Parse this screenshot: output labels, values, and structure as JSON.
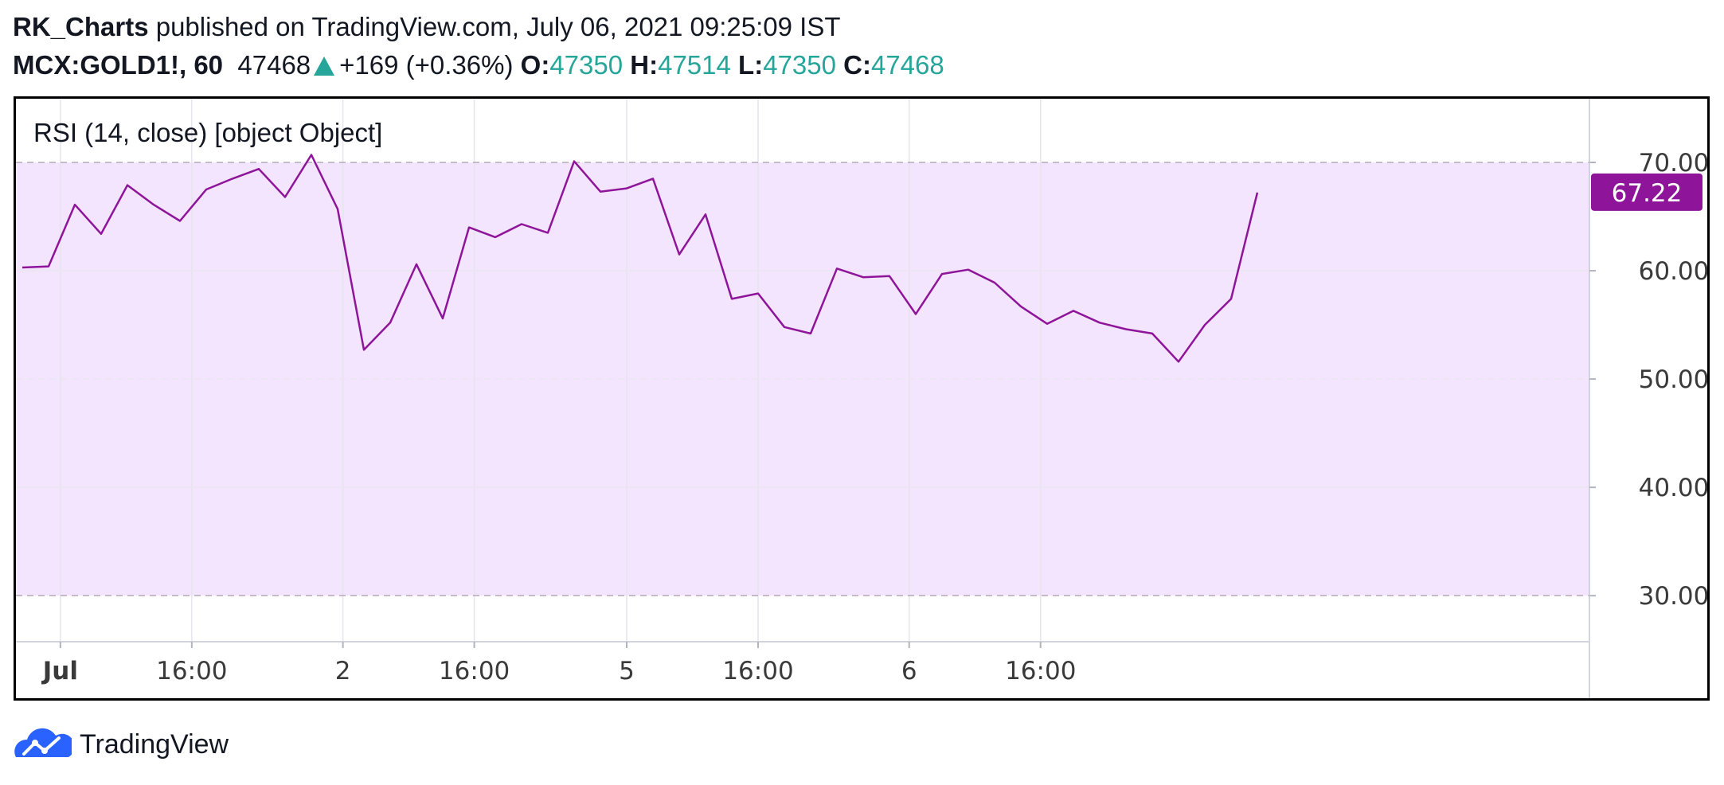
{
  "header": {
    "author": "RK_Charts",
    "published_text": " published on TradingView.com, July 06, 2021 09:25:09 IST"
  },
  "quote": {
    "symbol": "MCX:GOLD1!, 60",
    "last": "47468",
    "change": "+169 (+0.36%)",
    "open_label": "O:",
    "open": "47350",
    "high_label": "H:",
    "high": "47514",
    "low_label": "L:",
    "low": "47350",
    "close_label": "C:",
    "close": "47468"
  },
  "colors": {
    "line": "#8e1599",
    "band_fill": "#f3e5fd",
    "price_label_bg": "#8e1599",
    "up": "#26a69a"
  },
  "footer": {
    "brand": "TradingView",
    "logo_icon": "tradingview-cloud-logo-icon"
  },
  "chart_data": {
    "type": "line",
    "title": "RSI (14, close) [object Object]",
    "series": [
      {
        "values": [
          60.3,
          60.4,
          66.1,
          63.4,
          67.9,
          66.1,
          64.6,
          67.5,
          68.5,
          69.4,
          66.8,
          70.7,
          65.7,
          52.7,
          55.2,
          60.6,
          55.6,
          64.0,
          63.1,
          64.3,
          63.5,
          70.1,
          67.3,
          67.6,
          68.5,
          61.5,
          65.2,
          57.4,
          57.9,
          54.8,
          54.2,
          60.2,
          59.4,
          59.5,
          56.0,
          59.7,
          60.1,
          58.9,
          56.7,
          55.1,
          56.3,
          55.2,
          54.6,
          54.2,
          51.6,
          55.0,
          57.4,
          67.22
        ]
      }
    ],
    "current_value_label": "67.22",
    "ylim": [
      25.75,
      75.88
    ],
    "y_ticks": [
      "70.00",
      "60.00",
      "50.00",
      "40.00",
      "30.00"
    ],
    "bands": {
      "upper": 70,
      "lower": 30
    },
    "x_ticks": [
      "Jul",
      "16:00",
      "2",
      "16:00",
      "5",
      "16:00",
      "6",
      "16:00"
    ],
    "grid": true
  }
}
